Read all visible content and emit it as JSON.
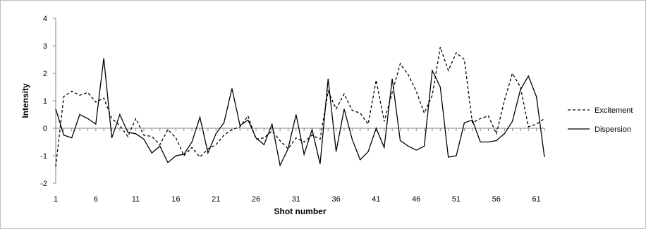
{
  "chart_data": {
    "type": "line",
    "xlabel": "Shot number",
    "ylabel": "Intensity",
    "x": [
      1,
      2,
      3,
      4,
      5,
      6,
      7,
      8,
      9,
      10,
      11,
      12,
      13,
      14,
      15,
      16,
      17,
      18,
      19,
      20,
      21,
      22,
      23,
      24,
      25,
      26,
      27,
      28,
      29,
      30,
      31,
      32,
      33,
      34,
      35,
      36,
      37,
      38,
      39,
      40,
      41,
      42,
      43,
      44,
      45,
      46,
      47,
      48,
      49,
      50,
      51,
      52,
      53,
      54,
      55,
      56,
      57,
      58,
      59,
      60,
      61,
      62
    ],
    "x_ticks": [
      1,
      6,
      11,
      16,
      21,
      26,
      31,
      36,
      41,
      46,
      51,
      56,
      61
    ],
    "ylim": [
      -2,
      4
    ],
    "y_ticks": [
      -2,
      -1,
      0,
      1,
      2,
      3,
      4
    ],
    "grid": false,
    "legend_position": "right",
    "series": [
      {
        "name": "Excitement",
        "style": "dashed",
        "color": "#000000",
        "values": [
          -1.4,
          1.15,
          1.35,
          1.2,
          1.3,
          0.95,
          1.1,
          0.35,
          0.1,
          -0.3,
          0.35,
          -0.25,
          -0.3,
          -0.6,
          -0.05,
          -0.35,
          -1.0,
          -0.7,
          -1.05,
          -0.75,
          -0.6,
          -0.25,
          -0.05,
          0.05,
          0.45,
          -0.4,
          -0.35,
          -0.1,
          -0.45,
          -0.75,
          -0.35,
          -0.5,
          -0.25,
          -0.4,
          1.35,
          0.7,
          1.25,
          0.65,
          0.55,
          0.15,
          1.75,
          0.25,
          1.3,
          2.35,
          1.95,
          1.35,
          0.55,
          1.2,
          2.95,
          2.1,
          2.75,
          2.5,
          0.2,
          0.35,
          0.45,
          -0.2,
          1.0,
          2.0,
          1.5,
          0.05,
          0.15,
          0.35
        ]
      },
      {
        "name": "Dispersion",
        "style": "solid",
        "color": "#000000",
        "values": [
          0.7,
          -0.25,
          -0.35,
          0.5,
          0.35,
          0.15,
          2.55,
          -0.35,
          0.5,
          -0.15,
          -0.2,
          -0.4,
          -0.9,
          -0.65,
          -1.25,
          -1.0,
          -0.95,
          -0.5,
          0.4,
          -0.9,
          -0.2,
          0.2,
          1.45,
          0.1,
          0.3,
          -0.35,
          -0.6,
          0.15,
          -1.35,
          -0.75,
          0.5,
          -0.95,
          -0.05,
          -1.3,
          1.8,
          -0.85,
          0.7,
          -0.4,
          -1.15,
          -0.85,
          0.0,
          -0.7,
          1.8,
          -0.45,
          -0.65,
          -0.8,
          -0.65,
          2.1,
          1.5,
          -1.05,
          -1.0,
          0.2,
          0.3,
          -0.5,
          -0.5,
          -0.45,
          -0.2,
          0.25,
          1.4,
          1.9,
          1.15,
          -1.05
        ]
      }
    ]
  }
}
